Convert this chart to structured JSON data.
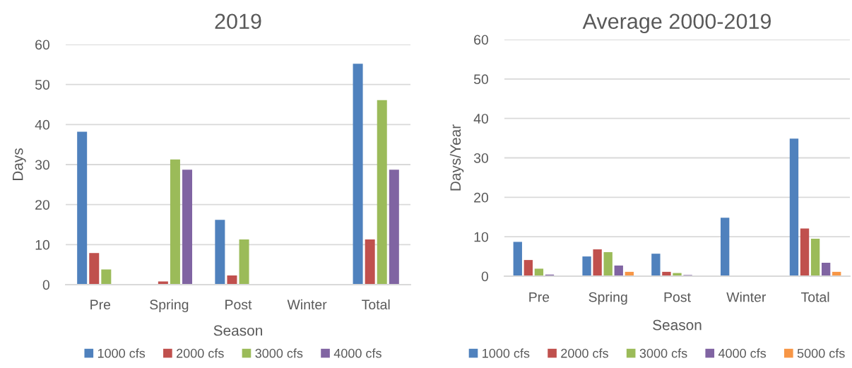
{
  "chart_data": [
    {
      "type": "bar",
      "title": "2019",
      "xlabel": "Season",
      "ylabel": "Days",
      "categories": [
        "Pre",
        "Spring",
        "Post",
        "Winter",
        "Total"
      ],
      "series": [
        {
          "name": "1000 cfs",
          "color": "#4f81bd",
          "values": [
            38.2,
            0,
            16.2,
            0,
            55.2
          ]
        },
        {
          "name": "2000 cfs",
          "color": "#c0504d",
          "values": [
            7.9,
            0.8,
            2.3,
            0,
            11.3
          ]
        },
        {
          "name": "3000 cfs",
          "color": "#9bbb59",
          "values": [
            3.8,
            31.3,
            11.3,
            0,
            46.1
          ]
        },
        {
          "name": "4000 cfs",
          "color": "#8064a2",
          "values": [
            0,
            28.7,
            0,
            0,
            28.7
          ]
        }
      ],
      "ylim": [
        0,
        60
      ],
      "yticks": [
        0,
        10,
        20,
        30,
        40,
        50,
        60
      ],
      "grid": "y",
      "legend": "bottom"
    },
    {
      "type": "bar",
      "title": "Average 2000-2019",
      "xlabel": "Season",
      "ylabel": "Days/Year",
      "categories": [
        "Pre",
        "Spring",
        "Post",
        "Winter",
        "Total"
      ],
      "series": [
        {
          "name": "1000 cfs",
          "color": "#4f81bd",
          "values": [
            8.7,
            5.0,
            5.7,
            14.8,
            34.9
          ]
        },
        {
          "name": "2000 cfs",
          "color": "#c0504d",
          "values": [
            4.1,
            6.8,
            1.1,
            0,
            12.1
          ]
        },
        {
          "name": "3000 cfs",
          "color": "#9bbb59",
          "values": [
            1.9,
            6.1,
            0.8,
            0,
            9.5
          ]
        },
        {
          "name": "4000 cfs",
          "color": "#8064a2",
          "values": [
            0.4,
            2.7,
            0.3,
            0,
            3.4
          ]
        },
        {
          "name": "5000 cfs",
          "color": "#f79646",
          "values": [
            0,
            1.1,
            0,
            0,
            1.1
          ]
        }
      ],
      "ylim": [
        0,
        60
      ],
      "yticks": [
        0,
        10,
        20,
        30,
        40,
        50,
        60
      ],
      "grid": "y",
      "legend": "bottom"
    }
  ]
}
